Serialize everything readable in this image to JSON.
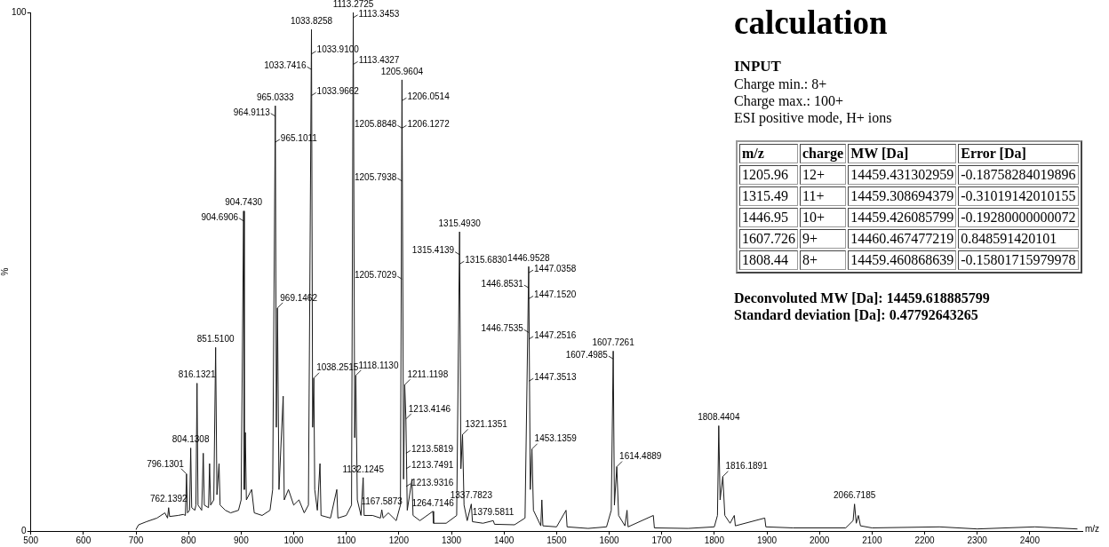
{
  "chart_data": [
    {
      "type": "line",
      "xlabel": "m/z",
      "ylabel": "%",
      "xlim": [
        500,
        2500
      ],
      "ylim": [
        0,
        100
      ],
      "xticks": [
        500,
        600,
        700,
        800,
        900,
        1000,
        1100,
        1200,
        1300,
        1400,
        1500,
        1600,
        1700,
        1800,
        1900,
        2000,
        2100,
        2200,
        2300,
        2400
      ],
      "yticks": [
        0,
        100
      ],
      "grid": false,
      "legend": false,
      "marker": "none",
      "line_style": "solid",
      "series": [
        {
          "color": "#1a1a1a",
          "x": [
            700,
            705,
            720,
            740,
            755,
            760,
            762.1392,
            764,
            780,
            790,
            794,
            796.1301,
            798,
            802,
            804.1308,
            806,
            812,
            814,
            816.1321,
            818,
            825,
            828,
            830,
            838,
            840,
            842,
            848,
            851.51,
            854,
            858,
            860,
            870,
            880,
            895,
            900,
            904.743,
            906,
            908,
            910,
            920,
            925,
            940,
            955,
            960,
            965.0333,
            967,
            969.1462,
            972,
            980,
            982,
            990,
            1000,
            1010,
            1020,
            1028,
            1033.8258,
            1036,
            1038.2515,
            1040,
            1045,
            1050,
            1052,
            1070,
            1082,
            1084,
            1100,
            1110,
            1113.2725,
            1116,
            1118.113,
            1121,
            1128,
            1132.1245,
            1134,
            1150,
            1165,
            1167.5873,
            1170,
            1180,
            1195,
            1203,
            1205.9604,
            1209,
            1211.1198,
            1213.4146,
            1216,
            1225,
            1227,
            1240,
            1264.7146,
            1266,
            1290,
            1310,
            1315.493,
            1318,
            1321.1351,
            1324,
            1330,
            1337.7823,
            1340,
            1360,
            1379.5811,
            1382,
            1420,
            1440,
            1446.9528,
            1450,
            1453.1359,
            1456,
            1470,
            1472,
            1474,
            1500,
            1518,
            1520,
            1560,
            1595,
            1604,
            1607.7261,
            1610,
            1614.4889,
            1618,
            1630,
            1634,
            1636,
            1684,
            1686,
            1750,
            1800,
            1806,
            1808.4404,
            1811,
            1816.1891,
            1820,
            1830,
            1838,
            1840,
            1896,
            1898,
            1950,
            2050,
            2064,
            2066.7185,
            2070,
            2074,
            2078,
            2100,
            2228,
            2300,
            2410,
            2490
          ],
          "values": [
            0.3,
            1.2,
            1.8,
            2.5,
            3.5,
            2.5,
            4.5,
            2.8,
            3,
            3.2,
            3,
            11,
            3.5,
            4,
            16,
            4.5,
            4,
            5,
            28.5,
            5,
            4,
            15,
            5,
            4.5,
            13,
            5,
            6,
            35.4,
            7,
            13,
            5,
            4,
            3.5,
            4,
            6,
            61.7,
            8,
            19,
            6,
            8,
            3.5,
            3,
            4,
            8,
            82,
            20,
            43,
            8,
            26,
            6,
            8,
            5,
            6,
            3.5,
            5,
            96.7,
            20,
            29.5,
            8,
            4,
            13,
            3,
            2.5,
            8,
            2.5,
            3,
            5,
            100,
            18,
            30,
            6,
            3,
            10.3,
            3,
            3,
            2.5,
            4.1,
            2.5,
            3.5,
            2,
            5,
            87,
            10,
            28.2,
            21.6,
            4,
            10,
            3,
            2,
            3.8,
            1.5,
            1.5,
            3,
            57.7,
            12,
            18.6,
            5,
            2,
            5.2,
            1.8,
            1.5,
            2,
            1.3,
            1.2,
            2.5,
            51,
            8,
            15.8,
            4,
            1,
            6,
            1,
            0.8,
            4,
            0.8,
            0.5,
            0.8,
            4,
            34.7,
            5,
            12.4,
            3,
            1,
            4,
            0.8,
            3,
            0.6,
            0.5,
            0.8,
            3,
            20.3,
            6,
            10.5,
            3,
            1.5,
            3,
            1,
            2.5,
            0.8,
            0.6,
            0.6,
            2,
            5.2,
            1.5,
            3,
            1,
            0.6,
            0.8,
            0.4,
            0.8,
            0.4
          ]
        }
      ],
      "annotations": [
        {
          "text": "762.1392",
          "x": 762.1392,
          "y": 4.5
        },
        {
          "text": "796.1301",
          "x": 796.1301,
          "y": 11
        },
        {
          "text": "804.1308",
          "x": 804.1308,
          "y": 16
        },
        {
          "text": "816.1321",
          "x": 816.1321,
          "y": 28.5
        },
        {
          "text": "851.5100",
          "x": 851.51,
          "y": 35.4
        },
        {
          "text": "904.7430",
          "x": 904.743,
          "y": 61.7
        },
        {
          "text": "904.6906",
          "x": 904.6906,
          "y": 59.8
        },
        {
          "text": "965.0333",
          "x": 965.0333,
          "y": 82
        },
        {
          "text": "964.9113",
          "x": 964.9113,
          "y": 80
        },
        {
          "text": "965.1011",
          "x": 965.1011,
          "y": 75
        },
        {
          "text": "969.1462",
          "x": 969.1462,
          "y": 43
        },
        {
          "text": "1033.8258",
          "x": 1033.8258,
          "y": 96.7
        },
        {
          "text": "1033.9100",
          "x": 1033.91,
          "y": 92
        },
        {
          "text": "1033.7416",
          "x": 1033.7416,
          "y": 89
        },
        {
          "text": "1033.9662",
          "x": 1033.9662,
          "y": 84
        },
        {
          "text": "1038.2515",
          "x": 1038.2515,
          "y": 29.5
        },
        {
          "text": "1113.2725",
          "x": 1113.2725,
          "y": 100
        },
        {
          "text": "1113.3453",
          "x": 1113.3453,
          "y": 99
        },
        {
          "text": "1113.4327",
          "x": 1113.4327,
          "y": 90
        },
        {
          "text": "1118.1130",
          "x": 1118.113,
          "y": 30
        },
        {
          "text": "1132.1245",
          "x": 1132.1245,
          "y": 10.3
        },
        {
          "text": "1167.5873",
          "x": 1167.5873,
          "y": 4.1
        },
        {
          "text": "1205.9604",
          "x": 1205.9604,
          "y": 87
        },
        {
          "text": "1206.0514",
          "x": 1206.0514,
          "y": 83
        },
        {
          "text": "1205.8848",
          "x": 1205.8848,
          "y": 77.7
        },
        {
          "text": "1206.1272",
          "x": 1206.1272,
          "y": 77.7
        },
        {
          "text": "1205.7938",
          "x": 1205.7938,
          "y": 67.5
        },
        {
          "text": "1205.7029",
          "x": 1205.7029,
          "y": 48.6
        },
        {
          "text": "1211.1198",
          "x": 1211.1198,
          "y": 28.2
        },
        {
          "text": "1213.4146",
          "x": 1213.4146,
          "y": 21.6
        },
        {
          "text": "1213.5819",
          "x": 1213.5819,
          "y": 15
        },
        {
          "text": "1213.7491",
          "x": 1213.7491,
          "y": 12
        },
        {
          "text": "1213.9316",
          "x": 1213.9316,
          "y": 8.6
        },
        {
          "text": "1264.7146",
          "x": 1264.7146,
          "y": 3.8
        },
        {
          "text": "1315.4930",
          "x": 1315.493,
          "y": 57.7
        },
        {
          "text": "1315.4139",
          "x": 1315.4139,
          "y": 53.3
        },
        {
          "text": "1315.6830",
          "x": 1315.683,
          "y": 51.5
        },
        {
          "text": "1321.1351",
          "x": 1321.1351,
          "y": 18.6
        },
        {
          "text": "1337.7823",
          "x": 1337.7823,
          "y": 5.2
        },
        {
          "text": "1379.5811",
          "x": 1379.5811,
          "y": 2
        },
        {
          "text": "1446.9528",
          "x": 1446.9528,
          "y": 51
        },
        {
          "text": "1447.0358",
          "x": 1447.0358,
          "y": 49.8
        },
        {
          "text": "1446.8531",
          "x": 1446.8531,
          "y": 46.9
        },
        {
          "text": "1447.1520",
          "x": 1447.152,
          "y": 44.8
        },
        {
          "text": "1446.7535",
          "x": 1446.7535,
          "y": 38.3
        },
        {
          "text": "1447.2516",
          "x": 1447.2516,
          "y": 37
        },
        {
          "text": "1447.3513",
          "x": 1447.3513,
          "y": 28.9
        },
        {
          "text": "1453.1359",
          "x": 1453.1359,
          "y": 15.8
        },
        {
          "text": "1607.7261",
          "x": 1607.7261,
          "y": 34.7
        },
        {
          "text": "1607.4985",
          "x": 1607.4985,
          "y": 33.2
        },
        {
          "text": "1614.4889",
          "x": 1614.4889,
          "y": 12.4
        },
        {
          "text": "1808.4404",
          "x": 1808.4404,
          "y": 20.3
        },
        {
          "text": "1816.1891",
          "x": 1816.1891,
          "y": 10.5
        },
        {
          "text": "2066.7185",
          "x": 2066.7185,
          "y": 5.2
        }
      ]
    },
    {
      "type": "other",
      "title": "calculation",
      "subtitle": "INPUT",
      "annotations": [
        "Charge min.: 8+",
        "Charge max.: 100+",
        "ESI positive mode, H+ ions",
        "m/z",
        "charge",
        "MW [Da]",
        "Error [Da]",
        "1205.96",
        "12+",
        "14459.431302959",
        "-0.18758284019896",
        "1315.49",
        "11+",
        "14459.308694379",
        "-0.31019142010155",
        "1446.95",
        "10+",
        "14459.426085799",
        "-0.19280000000072",
        "1607.726",
        "9+",
        "14460.467477219",
        "0.848591420101",
        "1808.44",
        "8+",
        "14459.460868639",
        "-0.15801715979978",
        "Deconvoluted MW [Da]: 14459.618885799",
        "Standard deviation [Da]: 0.47792643265"
      ]
    }
  ]
}
